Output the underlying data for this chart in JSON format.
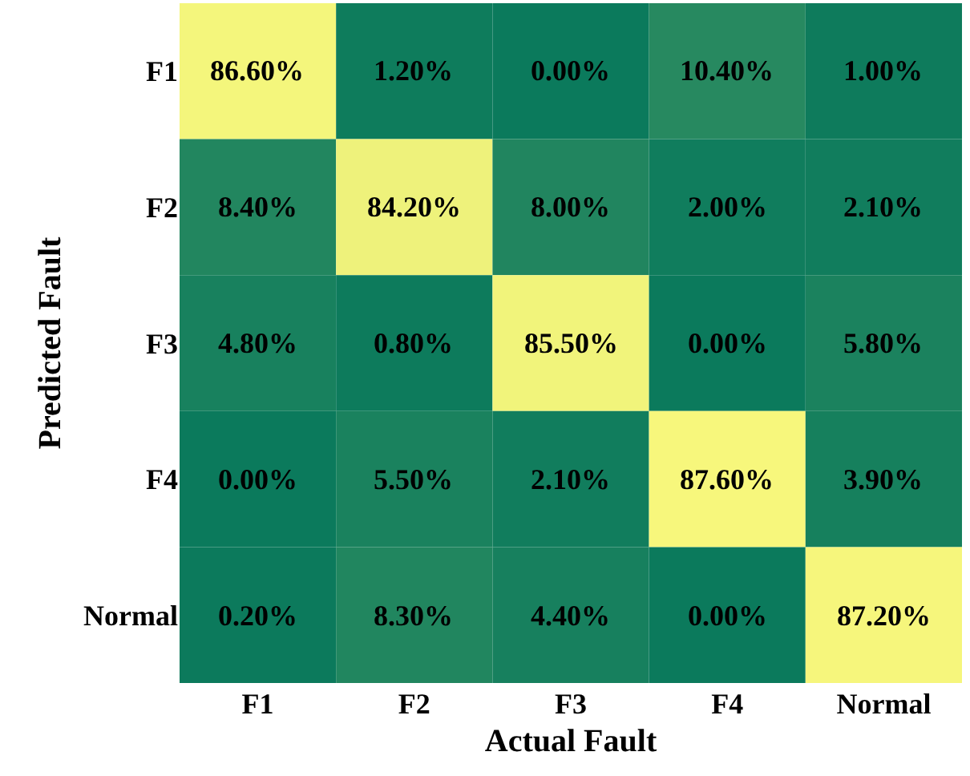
{
  "chart_data": {
    "type": "heatmap",
    "xlabel": "Actual Fault",
    "ylabel": "Predicted Fault",
    "categories": [
      "F1",
      "F2",
      "F3",
      "F4",
      "Normal"
    ],
    "y_categories": [
      "F1",
      "F2",
      "F3",
      "F4",
      "Normal"
    ],
    "cells": [
      [
        86.6,
        1.2,
        0,
        10.4,
        1
      ],
      [
        8.4,
        84.2,
        8,
        2,
        2.1
      ],
      [
        4.8,
        0.8,
        85.5,
        0,
        5.8
      ],
      [
        0,
        5.5,
        2.1,
        87.6,
        3.9
      ],
      [
        0.2,
        8.3,
        4.4,
        0,
        87.2
      ]
    ],
    "cell_labels": [
      [
        "86.60%",
        "1.20%",
        "0.00%",
        "10.40%",
        "1.00%"
      ],
      [
        "8.40%",
        "84.20%",
        "8.00%",
        "2.00%",
        "2.10%"
      ],
      [
        "4.80%",
        "0.80%",
        "85.50%",
        "0.00%",
        "5.80%"
      ],
      [
        "0.00%",
        "5.50%",
        "2.10%",
        "87.60%",
        "3.90%"
      ],
      [
        "0.20%",
        "8.30%",
        "4.40%",
        "0.00%",
        "87.20%"
      ]
    ]
  }
}
